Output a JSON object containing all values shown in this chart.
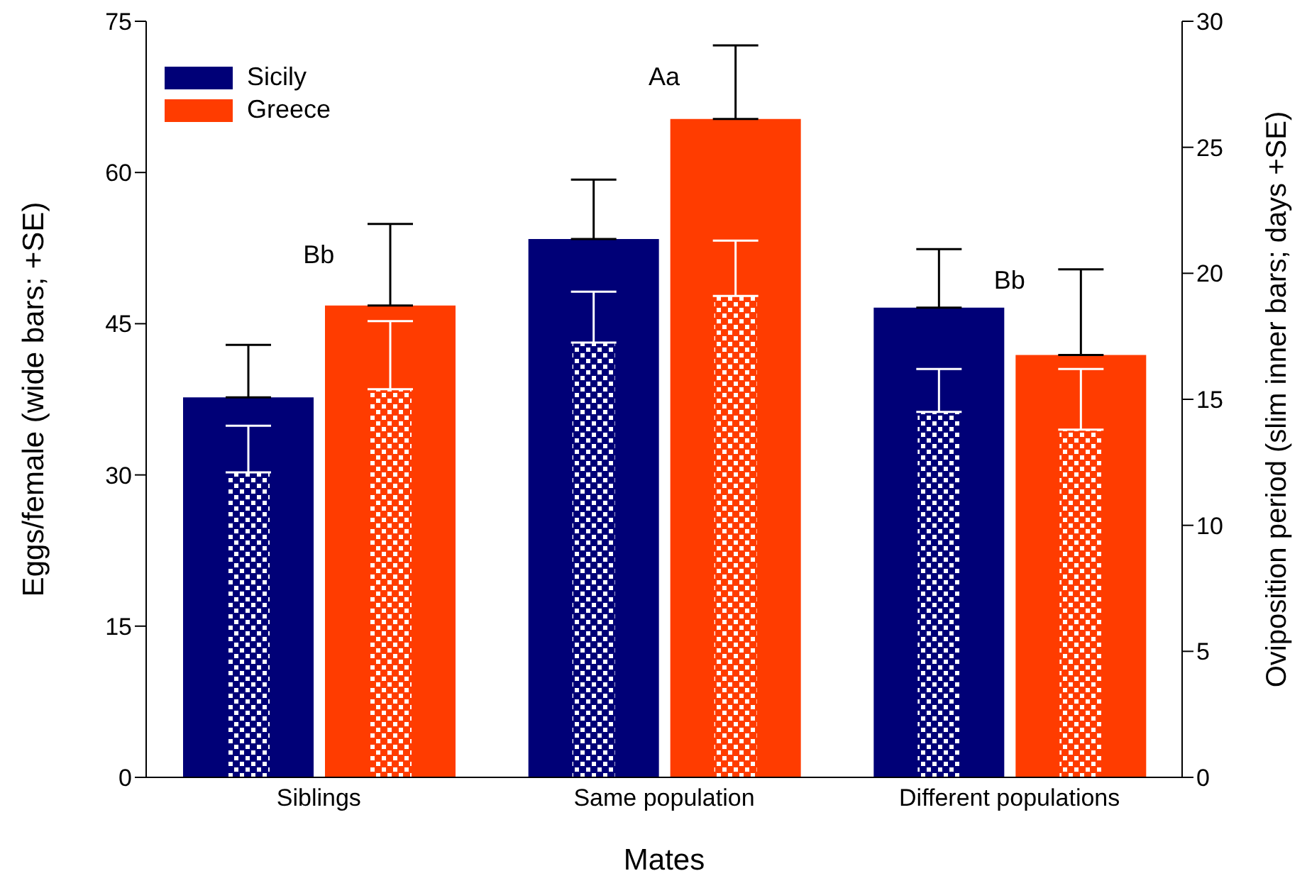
{
  "chart_data": {
    "type": "bar",
    "xlabel": "Mates",
    "ylabel": "Eggs/female (wide bars; +SE)",
    "y2label": "Oviposition period (slim inner bars; days +SE)",
    "categories": [
      "Siblings",
      "Same population",
      "Different populations"
    ],
    "series": [
      {
        "name": "Sicily",
        "color": "#000077",
        "values": [
          37.7,
          53.4,
          46.6
        ],
        "errors": [
          [
            37.7,
            42.9
          ],
          [
            53.4,
            59.3
          ],
          [
            46.6,
            52.4
          ]
        ]
      },
      {
        "name": "Greece",
        "color": "#ff3c00",
        "values": [
          46.8,
          65.3,
          41.9
        ],
        "errors": [
          [
            46.8,
            54.9
          ],
          [
            65.3,
            72.6
          ],
          [
            41.9,
            50.4
          ]
        ]
      },
      {
        "color": "#000077",
        "axis": "y2",
        "values": [
          12.1,
          17.25,
          14.5
        ],
        "errors": [
          [
            12.1,
            13.95
          ],
          [
            17.25,
            19.27
          ],
          [
            14.5,
            16.2
          ]
        ]
      },
      {
        "color": "#ff3c00",
        "axis": "y2",
        "values": [
          15.4,
          19.1,
          13.8
        ],
        "errors": [
          [
            15.4,
            18.1
          ],
          [
            19.1,
            21.3
          ],
          [
            13.8,
            16.2
          ]
        ]
      }
    ],
    "ylim": [
      0,
      75
    ],
    "yticks": [
      0,
      15,
      30,
      45,
      60,
      75
    ],
    "y2lim": [
      0,
      30
    ],
    "y2ticks": [
      0,
      5,
      10,
      15,
      20,
      25,
      30
    ],
    "annotations": [
      "Bb",
      "Aa",
      "Bb"
    ],
    "legend": "top left",
    "grid": false
  }
}
